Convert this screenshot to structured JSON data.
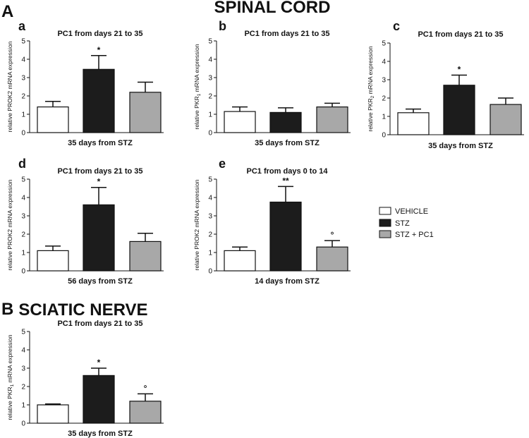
{
  "header": {
    "section_a_letter": "A",
    "section_a_title": "SPINAL CORD",
    "section_b_letter": "B",
    "section_b_title": "SCIATIC NERVE"
  },
  "legend": {
    "items": [
      {
        "label": "VEHICLE",
        "color": "#ffffff"
      },
      {
        "label": "STZ",
        "color": "#1c1c1c"
      },
      {
        "label": "STZ + PC1",
        "color": "#a8a8a8"
      }
    ]
  },
  "chart_data": [
    {
      "id": "a",
      "type": "bar",
      "panel_label": "a",
      "title": "PC1 from days 21 to 35",
      "xlabel": "35 days from STZ",
      "ylabel": "relative PROK2 mRNA expression",
      "ylim": [
        0,
        5
      ],
      "yticks": [
        0,
        1,
        2,
        3,
        4,
        5
      ],
      "categories": [
        "VEHICLE",
        "STZ",
        "STZ + PC1"
      ],
      "values": [
        1.4,
        3.45,
        2.2
      ],
      "errors": [
        0.3,
        0.75,
        0.55
      ],
      "significance": [
        "",
        "*",
        ""
      ]
    },
    {
      "id": "b",
      "type": "bar",
      "panel_label": "b",
      "title": "PC1 from days 21 to 35",
      "xlabel": "35 days from STZ",
      "ylabel": "relative PKR",
      "ylabel_sub": "1",
      "ylabel_rest": " mRNA expression",
      "ylim": [
        0,
        5
      ],
      "yticks": [
        0,
        1,
        2,
        3,
        4,
        5
      ],
      "categories": [
        "VEHICLE",
        "STZ",
        "STZ + PC1"
      ],
      "values": [
        1.15,
        1.1,
        1.4
      ],
      "errors": [
        0.25,
        0.25,
        0.2
      ],
      "significance": [
        "",
        "",
        ""
      ]
    },
    {
      "id": "c",
      "type": "bar",
      "panel_label": "c",
      "title": "PC1 from days 21 to 35",
      "xlabel": "35 days from STZ",
      "ylabel": "relative PKR",
      "ylabel_sub": "2",
      "ylabel_rest": " mRNA expression",
      "ylim": [
        0,
        5
      ],
      "yticks": [
        0,
        1,
        2,
        3,
        4,
        5
      ],
      "categories": [
        "VEHICLE",
        "STZ",
        "STZ + PC1"
      ],
      "values": [
        1.2,
        2.7,
        1.65
      ],
      "errors": [
        0.2,
        0.55,
        0.35
      ],
      "significance": [
        "",
        "*",
        ""
      ]
    },
    {
      "id": "d",
      "type": "bar",
      "panel_label": "d",
      "title": "PC1 from days 21 to 35",
      "xlabel": "56 days from STZ",
      "ylabel": "relative PROK2 mRNA expression",
      "ylim": [
        0,
        5
      ],
      "yticks": [
        0,
        1,
        2,
        3,
        4,
        5
      ],
      "categories": [
        "VEHICLE",
        "STZ",
        "STZ + PC1"
      ],
      "values": [
        1.1,
        3.6,
        1.6
      ],
      "errors": [
        0.25,
        0.95,
        0.45
      ],
      "significance": [
        "",
        "*",
        ""
      ]
    },
    {
      "id": "e",
      "type": "bar",
      "panel_label": "e",
      "title": "PC1 from days 0 to 14",
      "xlabel": "14 days from STZ",
      "ylabel": "relative PROK2 mRNA expression",
      "ylim": [
        0,
        5
      ],
      "yticks": [
        0,
        1,
        2,
        3,
        4,
        5
      ],
      "categories": [
        "VEHICLE",
        "STZ",
        "STZ + PC1"
      ],
      "values": [
        1.1,
        3.75,
        1.3
      ],
      "errors": [
        0.2,
        0.85,
        0.35
      ],
      "significance": [
        "",
        "**",
        "°"
      ]
    },
    {
      "id": "B",
      "type": "bar",
      "panel_label": "",
      "title": "PC1 from days 21 to 35",
      "xlabel": "35 days from STZ",
      "ylabel": "relative PKR",
      "ylabel_sub": "1",
      "ylabel_rest": " mRNA expression",
      "ylim": [
        0,
        5
      ],
      "yticks": [
        0,
        1,
        2,
        3,
        4,
        5
      ],
      "categories": [
        "VEHICLE",
        "STZ",
        "STZ + PC1"
      ],
      "values": [
        1.0,
        2.6,
        1.2
      ],
      "errors": [
        0.05,
        0.4,
        0.4
      ],
      "significance": [
        "",
        "*",
        "°"
      ]
    }
  ]
}
